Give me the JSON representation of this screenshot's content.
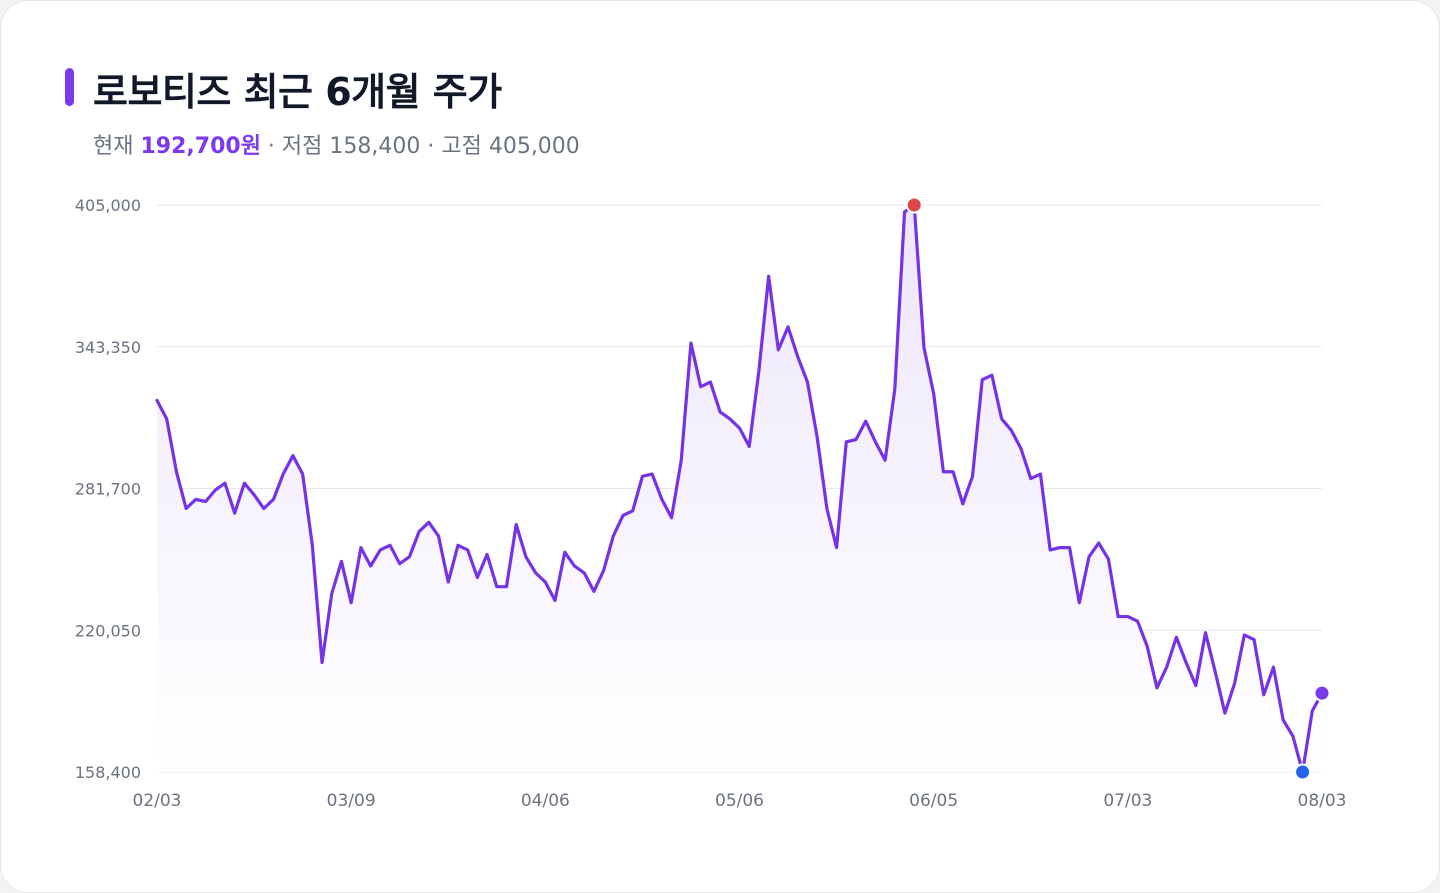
{
  "header": {
    "title": "로보티즈 최근 6개월 주가",
    "current_label": "현재",
    "current_value": "192,700원",
    "low_text": " · 저점 158,400",
    "high_text": " · 고점 405,000"
  },
  "colors": {
    "accent": "#7c3aed",
    "line": "#7433e6",
    "high_marker": "#e04646",
    "low_marker": "#2563eb",
    "grid": "#e5e7eb",
    "area_top": "#ede6fb"
  },
  "chart_data": {
    "type": "area",
    "title": "로보티즈 최근 6개월 주가",
    "xlabel": "",
    "ylabel": "",
    "ylim": [
      158400,
      405000
    ],
    "y_ticks": [
      "405,000",
      "343,350",
      "281,700",
      "220,050",
      "158,400"
    ],
    "y_tick_values": [
      405000,
      343350,
      281700,
      220050,
      158400
    ],
    "x_ticks": [
      "02/03",
      "03/09",
      "04/06",
      "05/06",
      "06/05",
      "07/03",
      "08/03"
    ],
    "x_tick_index": [
      0,
      20,
      40,
      60,
      80,
      100,
      120
    ],
    "grid": true,
    "high": 405000,
    "low": 158400,
    "current": 192700,
    "series": [
      {
        "values": [
          320000,
          312000,
          289000,
          273000,
          277000,
          276000,
          281000,
          284000,
          271000,
          284000,
          279000,
          273000,
          277000,
          288000,
          296000,
          288000,
          257000,
          206000,
          236000,
          250000,
          232000,
          256000,
          248000,
          255000,
          257000,
          249000,
          252000,
          263000,
          267000,
          261000,
          241000,
          257000,
          255000,
          243000,
          253000,
          239000,
          239000,
          266000,
          252000,
          245000,
          241000,
          233000,
          254000,
          248000,
          245000,
          237000,
          246000,
          261000,
          270000,
          272000,
          287000,
          288000,
          277000,
          269000,
          294000,
          345000,
          326000,
          328000,
          315000,
          312000,
          308000,
          300000,
          333000,
          374000,
          342000,
          352000,
          339000,
          328000,
          304000,
          273000,
          256000,
          302000,
          303000,
          311000,
          302000,
          294000,
          325000,
          402000,
          405000,
          343000,
          323000,
          289000,
          289000,
          275000,
          287000,
          329000,
          331000,
          312000,
          307000,
          299000,
          286000,
          288000,
          255000,
          256000,
          256000,
          232000,
          252000,
          258000,
          251000,
          226000,
          226000,
          224000,
          213000,
          195000,
          204000,
          217000,
          206000,
          196000,
          219000,
          202000,
          184000,
          197000,
          218000,
          216000,
          192000,
          204000,
          181000,
          174000,
          158400,
          185000,
          192700
        ]
      }
    ]
  }
}
